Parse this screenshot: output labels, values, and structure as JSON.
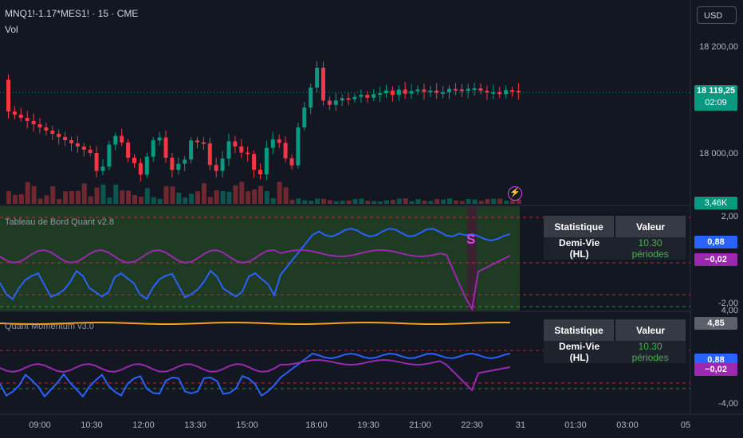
{
  "header": {
    "symbol": "MNQ1!-1.17*MES1! · 15 · CME",
    "volume_label": "Vol"
  },
  "currency_button": "USD",
  "price_axis": [
    "18 200,00",
    "18 000,00"
  ],
  "last_price": {
    "value": "18 119,25",
    "countdown": "02:09",
    "color": "#089981"
  },
  "volume_badge": "3,46K",
  "time_axis": [
    "09:00",
    "10:30",
    "12:00",
    "13:30",
    "15:00",
    "18:00",
    "19:30",
    "21:00",
    "22:30",
    "31",
    "01:30",
    "03:00",
    "05"
  ],
  "panel1": {
    "title": "Tableau de Bord Quant v2.8",
    "axis": [
      "2,00",
      "-2,00"
    ],
    "blue_value": "0,88",
    "purple_value": "−0,02",
    "marker": "S",
    "table": {
      "headers": [
        "Statistique",
        "Valeur"
      ],
      "row": [
        "Demi-Vie (HL)",
        "10.30 périodes"
      ]
    }
  },
  "panel2": {
    "title": "Quant Momentum v3.0",
    "axis": [
      "4,00",
      "-4,00"
    ],
    "orange_value": "4,85",
    "blue_value": "0,88",
    "purple_value": "−0,02",
    "table": {
      "headers": [
        "Statistique",
        "Valeur"
      ],
      "row": [
        "Demi-Vie (HL)",
        "10.30 périodes"
      ]
    }
  },
  "colors": {
    "up": "#089981",
    "down": "#f23645",
    "blue": "#2962ff",
    "purple": "#9c27b0",
    "orange": "#f7a21b",
    "accent": "#2962ff"
  }
}
